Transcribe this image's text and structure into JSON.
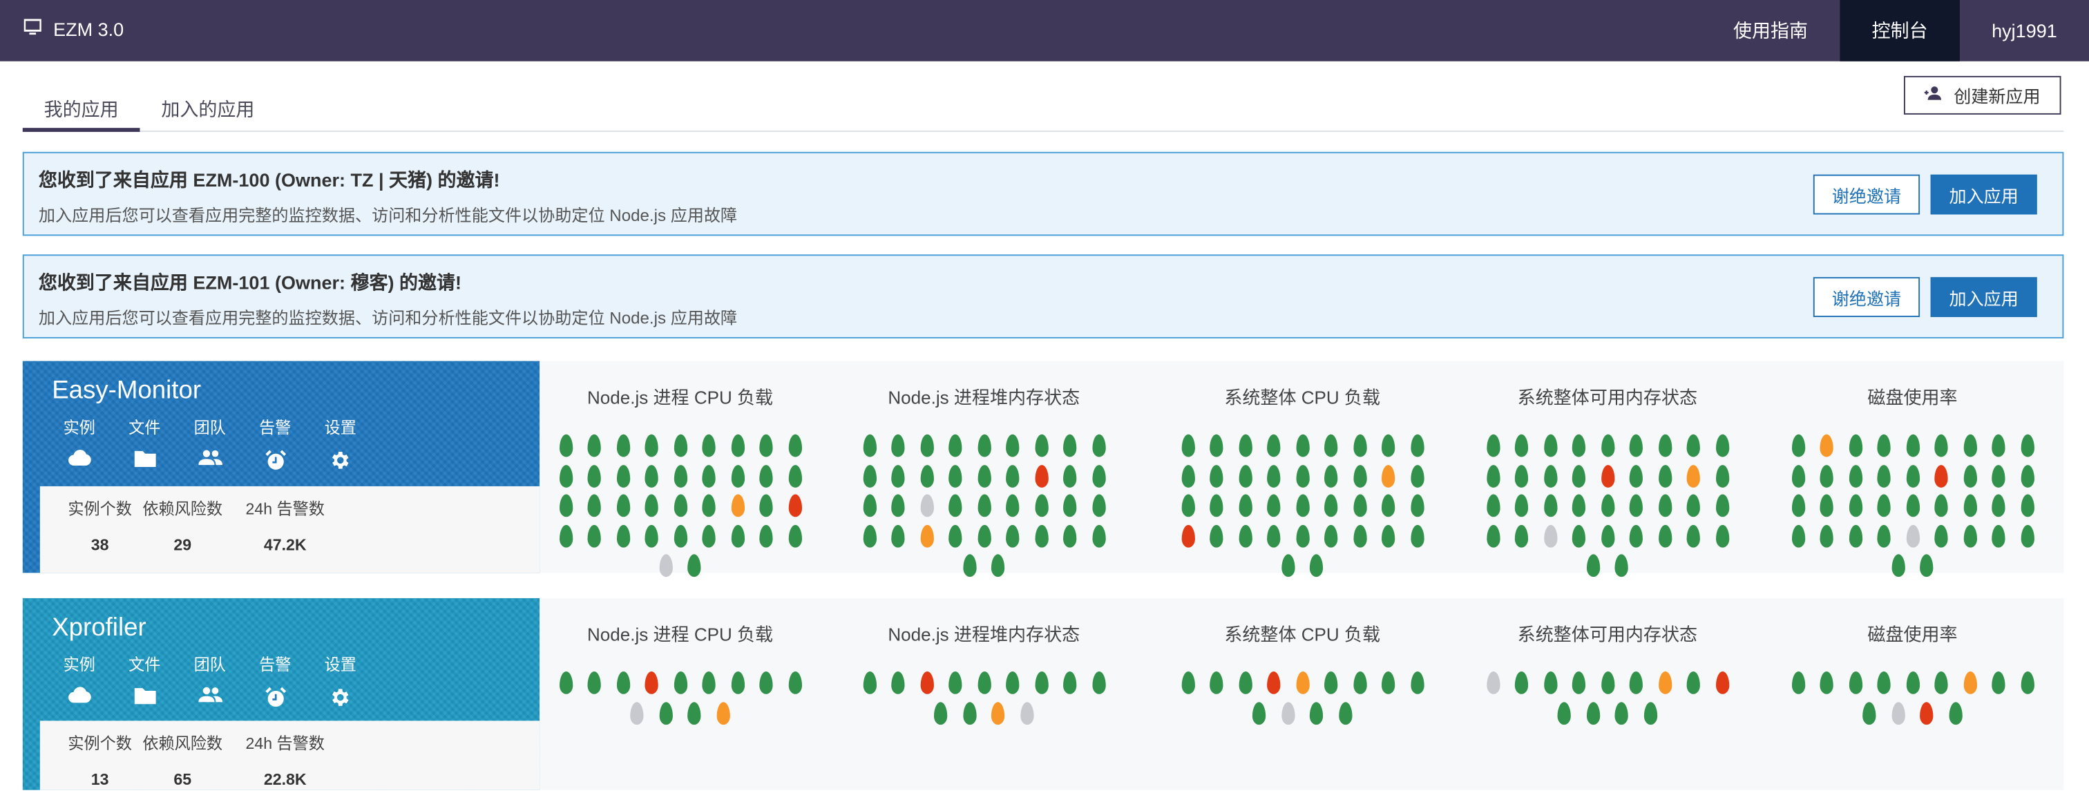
{
  "header": {
    "brand": "EZM 3.0",
    "nav": [
      {
        "label": "使用指南",
        "active": false
      },
      {
        "label": "控制台",
        "active": true
      },
      {
        "label": "hyj1991",
        "active": false
      }
    ]
  },
  "tabs": [
    {
      "label": "我的应用",
      "active": true
    },
    {
      "label": "加入的应用",
      "active": false
    }
  ],
  "create_button": "创建新应用",
  "invites": [
    {
      "title": "您收到了来自应用 EZM-100 (Owner: TZ | 天猪) 的邀请!",
      "desc": "加入应用后您可以查看应用完整的监控数据、访问和分析性能文件以协助定位 Node.js 应用故障",
      "decline": "谢绝邀请",
      "accept": "加入应用"
    },
    {
      "title": "您收到了来自应用 EZM-101 (Owner: 穆客) 的邀请!",
      "desc": "加入应用后您可以查看应用完整的监控数据、访问和分析性能文件以协助定位 Node.js 应用故障",
      "decline": "谢绝邀请",
      "accept": "加入应用"
    }
  ],
  "status_colors": {
    "g": "#32914a",
    "o": "#f7972a",
    "r": "#e03a16",
    "n": "#c7c9cf"
  },
  "metric_titles": [
    "Node.js 进程 CPU 负载",
    "Node.js 进程堆内存状态",
    "系统整体 CPU 负载",
    "系统整体可用内存状态",
    "磁盘使用率"
  ],
  "link_labels": [
    {
      "label": "实例",
      "icon": "cloud-icon"
    },
    {
      "label": "文件",
      "icon": "folder-icon"
    },
    {
      "label": "团队",
      "icon": "team-icon"
    },
    {
      "label": "告警",
      "icon": "alarm-icon"
    },
    {
      "label": "设置",
      "icon": "gear-icon"
    }
  ],
  "stat_labels": [
    "实例个数",
    "依赖风险数",
    "24h 告警数"
  ],
  "apps": [
    {
      "name": "Easy-Monitor",
      "bg": "#1f78c0",
      "stats": [
        "38",
        "29",
        "47.2K"
      ],
      "metrics": [
        [
          "ggggggggg",
          "ggggggggg",
          "ggggggogr",
          "ggggggggg",
          "ng"
        ],
        [
          "ggggggggg",
          "ggggggrgg",
          "ggngggggg",
          "ggogggggg",
          "gg"
        ],
        [
          "ggggggggg",
          "gggggggog",
          "ggggggggg",
          "rgggggggg",
          "gg"
        ],
        [
          "ggggggggg",
          "ggggrggog",
          "ggggggggg",
          "ggngggggg",
          "gg"
        ],
        [
          "goggggggg",
          "gggggrggg",
          "ggggggggg",
          "ggggngggg",
          "gg"
        ]
      ]
    },
    {
      "name": "Xprofiler",
      "bg": "#1f9ac4",
      "stats": [
        "13",
        "65",
        "22.8K"
      ],
      "metrics": [
        [
          "gggrggggg",
          "nggo"
        ],
        [
          "ggrgggggg",
          "ggon"
        ],
        [
          "gggrogggg",
          "gngg"
        ],
        [
          "ngggggogr",
          "gggg"
        ],
        [
          "ggggggogg",
          "gnrg"
        ]
      ]
    }
  ]
}
